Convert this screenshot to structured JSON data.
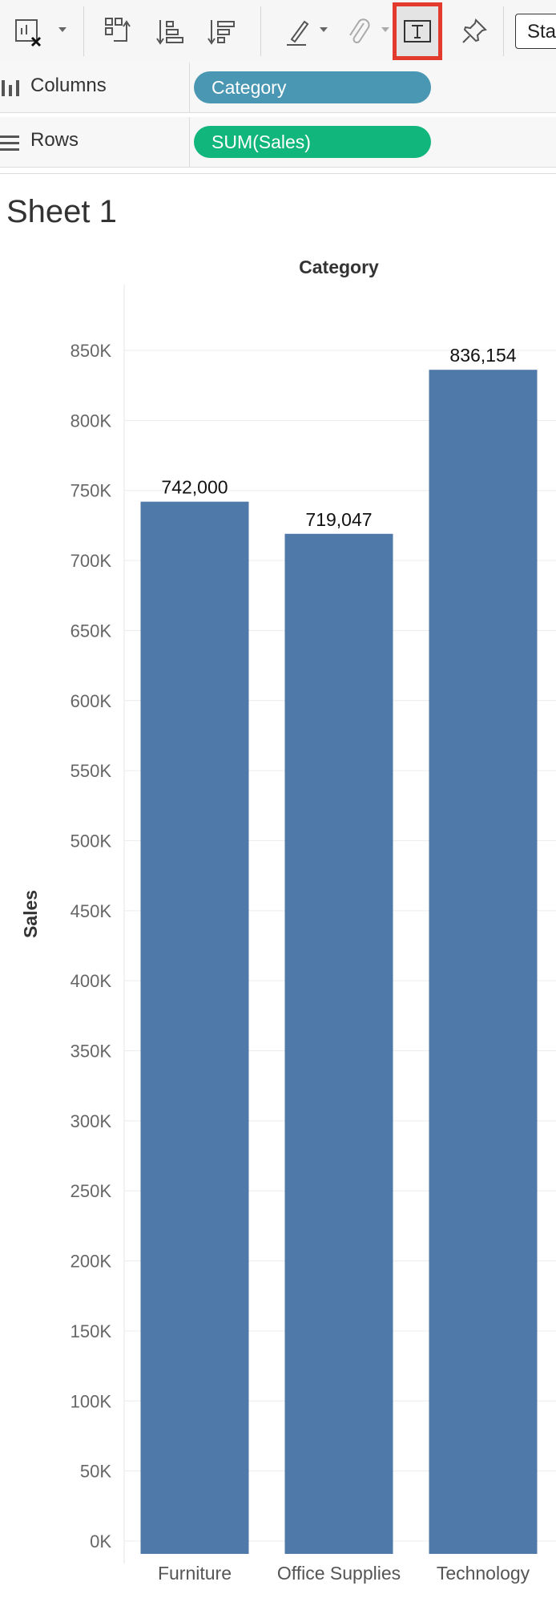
{
  "toolbar": {
    "standard_label": "Sta",
    "icons": [
      "clear-sheet-icon",
      "swap-rows-columns-icon",
      "sort-ascending-icon",
      "sort-descending-icon",
      "highlight-icon",
      "attach-icon",
      "text-label-icon",
      "pin-icon"
    ]
  },
  "shelves": {
    "columns_label": "Columns",
    "columns_pill": "Category",
    "rows_label": "Rows",
    "rows_pill": "SUM(Sales)"
  },
  "sheet": {
    "title": "Sheet 1"
  },
  "colors": {
    "bar": "#4f79a8",
    "pill_columns": "#4a97b4",
    "pill_rows": "#11b67c",
    "highlight": "#e23b2e"
  },
  "chart_data": {
    "type": "bar",
    "title": "Category",
    "xlabel": "",
    "ylabel": "Sales",
    "categories": [
      "Furniture",
      "Office Supplies",
      "Technology"
    ],
    "values": [
      742000,
      719047,
      836154
    ],
    "data_labels": [
      "742,000",
      "719,047",
      "836,154"
    ],
    "ylim": [
      0,
      850000
    ],
    "yticks": [
      0,
      50000,
      100000,
      150000,
      200000,
      250000,
      300000,
      350000,
      400000,
      450000,
      500000,
      550000,
      600000,
      650000,
      700000,
      750000,
      800000,
      850000
    ],
    "ytick_labels": [
      "0K",
      "50K",
      "100K",
      "150K",
      "200K",
      "250K",
      "300K",
      "350K",
      "400K",
      "450K",
      "500K",
      "550K",
      "600K",
      "650K",
      "700K",
      "750K",
      "800K",
      "850K"
    ],
    "grid": true
  }
}
